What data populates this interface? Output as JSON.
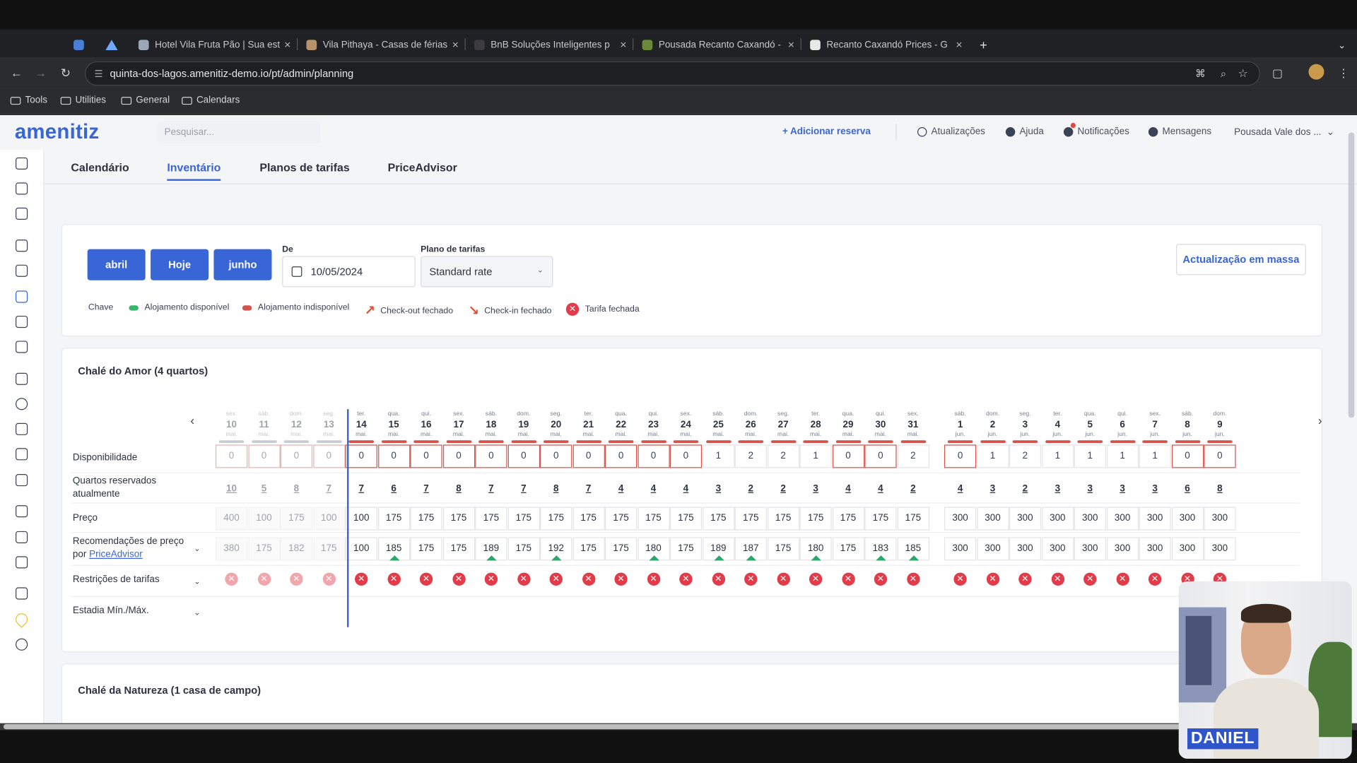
{
  "browser": {
    "tabs": [
      {
        "title": "Hotel Vila Fruta Pão | Sua est",
        "favicon_color": "#9ba7b8"
      },
      {
        "title": "Vila Pithaya - Casas de férias",
        "favicon_color": "#b89268"
      },
      {
        "title": "BnB Soluções Inteligentes p",
        "favicon_color": "#3d3d3d"
      },
      {
        "title": "Pousada Recanto Caxandó - ",
        "favicon_color": "#6a8a3a"
      },
      {
        "title": "Recanto Caxandó Prices - G",
        "favicon_color": "#e8e8e8"
      }
    ],
    "url": "quinta-dos-lagos.amenitiz-demo.io/pt/admin/planning",
    "bookmarks": [
      "Tools",
      "Utilities",
      "General",
      "Calendars"
    ]
  },
  "header": {
    "logo": "amenitiz",
    "search_placeholder": "Pesquisar...",
    "add_reservation": "+ Adicionar reserva",
    "updates": "Atualizações",
    "help": "Ajuda",
    "notifications": "Notificações",
    "messages": "Mensagens",
    "property": "Pousada Vale dos ...",
    "property_chevron": "⌄"
  },
  "tabs": [
    "Calendário",
    "Inventário",
    "Planos de tarifas",
    "PriceAdvisor"
  ],
  "controls": {
    "prev_month": "abril",
    "today": "Hoje",
    "next_month": "junho",
    "from_label": "De",
    "from_date": "10/05/2024",
    "plan_label": "Plano de tarifas",
    "plan_value": "Standard rate",
    "plan_chevron": "⌄",
    "bulk_update": "Actualização em massa"
  },
  "legend": {
    "title": "Chave",
    "available": "Alojamento disponível",
    "unavailable": "Alojamento indisponível",
    "checkout_closed": "Check-out fechado",
    "checkin_closed": "Check-in fechado",
    "rate_closed": "Tarifa fechada",
    "arrow_checkout": "↗",
    "arrow_checkin": "↘",
    "x_mark": "✕"
  },
  "colors": {
    "available": "#33b86b",
    "unavailable": "#d4534a",
    "accent": "#3966d6"
  },
  "room1": {
    "title": "Chalé do Amor (4 quartos)",
    "nav_prev": "‹",
    "nav_next": "›",
    "rows": {
      "availability": "Disponibilidade",
      "booked_line1": "Quartos reservados",
      "booked_line2": "atualmente",
      "price": "Preço",
      "rec_line1": "Recomendações de preço",
      "rec_line2_prefix": "por",
      "rec_link": "PriceAdvisor",
      "restrictions": "Restrições de tarifas",
      "minmax": "Estadia Mín./Máx.",
      "dropdown": "⌄"
    },
    "days": [
      {
        "dow": "sex.",
        "day": "10",
        "mon": "mai.",
        "avail": "0",
        "booked": "10",
        "price": "400",
        "rec": "380",
        "up": false,
        "past": true
      },
      {
        "dow": "sáb.",
        "day": "11",
        "mon": "mai.",
        "avail": "0",
        "booked": "5",
        "price": "100",
        "rec": "175",
        "up": false,
        "past": true
      },
      {
        "dow": "dom.",
        "day": "12",
        "mon": "mai.",
        "avail": "0",
        "booked": "8",
        "price": "175",
        "rec": "182",
        "up": false,
        "past": true
      },
      {
        "dow": "seg.",
        "day": "13",
        "mon": "mai.",
        "avail": "0",
        "booked": "7",
        "price": "100",
        "rec": "175",
        "up": false,
        "past": true
      },
      {
        "dow": "ter.",
        "day": "14",
        "mon": "mai.",
        "avail": "0",
        "booked": "7",
        "price": "100",
        "rec": "100",
        "up": false,
        "past": false
      },
      {
        "dow": "qua.",
        "day": "15",
        "mon": "mai.",
        "avail": "0",
        "booked": "6",
        "price": "175",
        "rec": "185",
        "up": true,
        "past": false
      },
      {
        "dow": "qui.",
        "day": "16",
        "mon": "mai.",
        "avail": "0",
        "booked": "7",
        "price": "175",
        "rec": "175",
        "up": false,
        "past": false
      },
      {
        "dow": "sex.",
        "day": "17",
        "mon": "mai.",
        "avail": "0",
        "booked": "8",
        "price": "175",
        "rec": "175",
        "up": false,
        "past": false
      },
      {
        "dow": "sáb.",
        "day": "18",
        "mon": "mai.",
        "avail": "0",
        "booked": "7",
        "price": "175",
        "rec": "189",
        "up": true,
        "past": false
      },
      {
        "dow": "dom.",
        "day": "19",
        "mon": "mai.",
        "avail": "0",
        "booked": "7",
        "price": "175",
        "rec": "175",
        "up": false,
        "past": false
      },
      {
        "dow": "seg.",
        "day": "20",
        "mon": "mai.",
        "avail": "0",
        "booked": "8",
        "price": "175",
        "rec": "192",
        "up": true,
        "past": false
      },
      {
        "dow": "ter.",
        "day": "21",
        "mon": "mai.",
        "avail": "0",
        "booked": "7",
        "price": "175",
        "rec": "175",
        "up": false,
        "past": false
      },
      {
        "dow": "qua.",
        "day": "22",
        "mon": "mai.",
        "avail": "0",
        "booked": "4",
        "price": "175",
        "rec": "175",
        "up": false,
        "past": false
      },
      {
        "dow": "qui.",
        "day": "23",
        "mon": "mai.",
        "avail": "0",
        "booked": "4",
        "price": "175",
        "rec": "180",
        "up": true,
        "past": false
      },
      {
        "dow": "sex.",
        "day": "24",
        "mon": "mai.",
        "avail": "0",
        "booked": "4",
        "price": "175",
        "rec": "175",
        "up": false,
        "past": false
      },
      {
        "dow": "sáb.",
        "day": "25",
        "mon": "mai.",
        "avail": "1",
        "booked": "3",
        "price": "175",
        "rec": "189",
        "up": true,
        "past": false
      },
      {
        "dow": "dom.",
        "day": "26",
        "mon": "mai.",
        "avail": "2",
        "booked": "2",
        "price": "175",
        "rec": "187",
        "up": true,
        "past": false
      },
      {
        "dow": "seg.",
        "day": "27",
        "mon": "mai.",
        "avail": "2",
        "booked": "2",
        "price": "175",
        "rec": "175",
        "up": false,
        "past": false
      },
      {
        "dow": "ter.",
        "day": "28",
        "mon": "mai.",
        "avail": "1",
        "booked": "3",
        "price": "175",
        "rec": "180",
        "up": true,
        "past": false
      },
      {
        "dow": "qua.",
        "day": "29",
        "mon": "mai.",
        "avail": "0",
        "booked": "4",
        "price": "175",
        "rec": "175",
        "up": false,
        "past": false
      },
      {
        "dow": "qui.",
        "day": "30",
        "mon": "mai.",
        "avail": "0",
        "booked": "4",
        "price": "175",
        "rec": "183",
        "up": true,
        "past": false
      },
      {
        "dow": "sex.",
        "day": "31",
        "mon": "mai.",
        "avail": "2",
        "booked": "2",
        "price": "175",
        "rec": "185",
        "up": true,
        "past": false
      },
      {
        "dow": "sáb.",
        "day": "1",
        "mon": "jun.",
        "avail": "0",
        "booked": "4",
        "price": "300",
        "rec": "300",
        "up": false,
        "past": false
      },
      {
        "dow": "dom.",
        "day": "2",
        "mon": "jun.",
        "avail": "1",
        "booked": "3",
        "price": "300",
        "rec": "300",
        "up": false,
        "past": false
      },
      {
        "dow": "seg.",
        "day": "3",
        "mon": "jun.",
        "avail": "2",
        "booked": "2",
        "price": "300",
        "rec": "300",
        "up": false,
        "past": false
      },
      {
        "dow": "ter.",
        "day": "4",
        "mon": "jun.",
        "avail": "1",
        "booked": "3",
        "price": "300",
        "rec": "300",
        "up": false,
        "past": false
      },
      {
        "dow": "qua.",
        "day": "5",
        "mon": "jun.",
        "avail": "1",
        "booked": "3",
        "price": "300",
        "rec": "300",
        "up": false,
        "past": false
      },
      {
        "dow": "qui.",
        "day": "6",
        "mon": "jun.",
        "avail": "1",
        "booked": "3",
        "price": "300",
        "rec": "300",
        "up": false,
        "past": false
      },
      {
        "dow": "sex.",
        "day": "7",
        "mon": "jun.",
        "avail": "1",
        "booked": "3",
        "price": "300",
        "rec": "300",
        "up": false,
        "past": false
      },
      {
        "dow": "sáb.",
        "day": "8",
        "mon": "jun.",
        "avail": "0",
        "booked": "6",
        "price": "300",
        "rec": "300",
        "up": false,
        "past": false
      },
      {
        "dow": "dom.",
        "day": "9",
        "mon": "jun.",
        "avail": "0",
        "booked": "8",
        "price": "300",
        "rec": "300",
        "up": false,
        "past": false
      }
    ]
  },
  "room2": {
    "title": "Chalé da Natureza (1 casa de campo)"
  },
  "webcam": {
    "name": "DANIEL"
  }
}
